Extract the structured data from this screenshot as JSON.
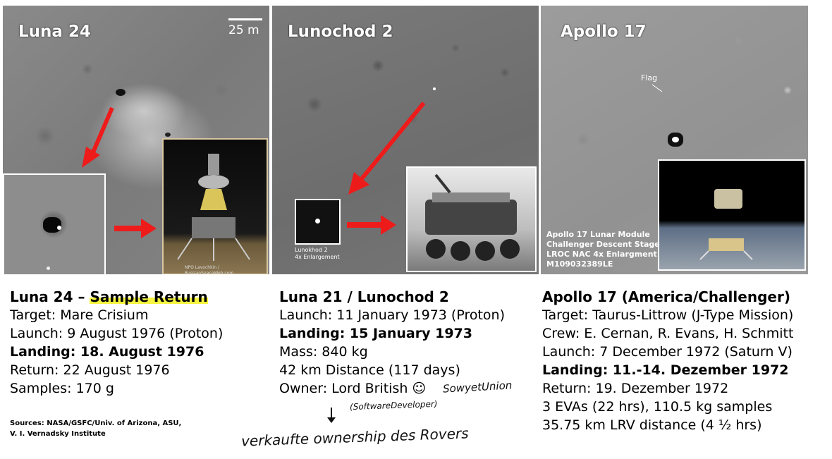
{
  "panels": {
    "luna24": {
      "title": "Luna 24",
      "scale_label": "25 m",
      "credit": "NPO Lavochkin / RussianSpaceWeb.com"
    },
    "lunochod2": {
      "title": "Lunochod 2",
      "inset_caption_line1": "Lunokhod 2",
      "inset_caption_line2": "4x Enlargement"
    },
    "apollo17": {
      "title": "Apollo 17",
      "flag_label": "Flag",
      "caption_lines": [
        "Apollo 17 Lunar Module",
        "Challenger Descent Stage",
        "LROC NAC 4x Enlargment",
        "M109032389LE"
      ]
    }
  },
  "col1": {
    "heading_prefix": "Luna 24 – ",
    "heading_highlight": "Sample Return",
    "target": "Target: Mare Crisium",
    "launch": "Launch: 9 August 1976 (Proton)",
    "landing": "Landing: 18. August 1976",
    "return": "Return: 22 August 1976",
    "samples": "Samples: 170 g"
  },
  "col2": {
    "heading": "Luna 21 / Lunochod 2",
    "launch": "Launch: 11 January 1973 (Proton)",
    "landing": "Landing: 15 January 1973",
    "mass": "Mass: 840 kg",
    "distance": "42 km Distance (117 days)",
    "owner": "Owner: Lord British ☺"
  },
  "col3": {
    "heading": "Apollo 17 (America/Challenger)",
    "target": "Target: Taurus-Littrow (J-Type Mission)",
    "crew": "Crew: E. Cernan, R. Evans, H. Schmitt",
    "launch": "Launch: 7 December 1972 (Saturn V)",
    "landing": "Landing: 11.-14. Dezember 1972",
    "return": "Return: 19. Dezember 1972",
    "evas": "3 EVAs (22 hrs), 110.5 kg samples",
    "lrv": "35.75 km LRV distance (4 ½ hrs)"
  },
  "sources": {
    "line1": "Sources: NASA/GSFC/Univ. of Arizona, ASU,",
    "line2": "V. I. Vernadsky Institute"
  },
  "annotations": {
    "soviet_union": "SowyetUnion",
    "software_developer": "(SoftwareDeveloper)",
    "sold_ownership": "verkaufte ownership des Rovers"
  },
  "colors": {
    "arrow": "#ee1b1b",
    "highlight": "#f5f542"
  }
}
